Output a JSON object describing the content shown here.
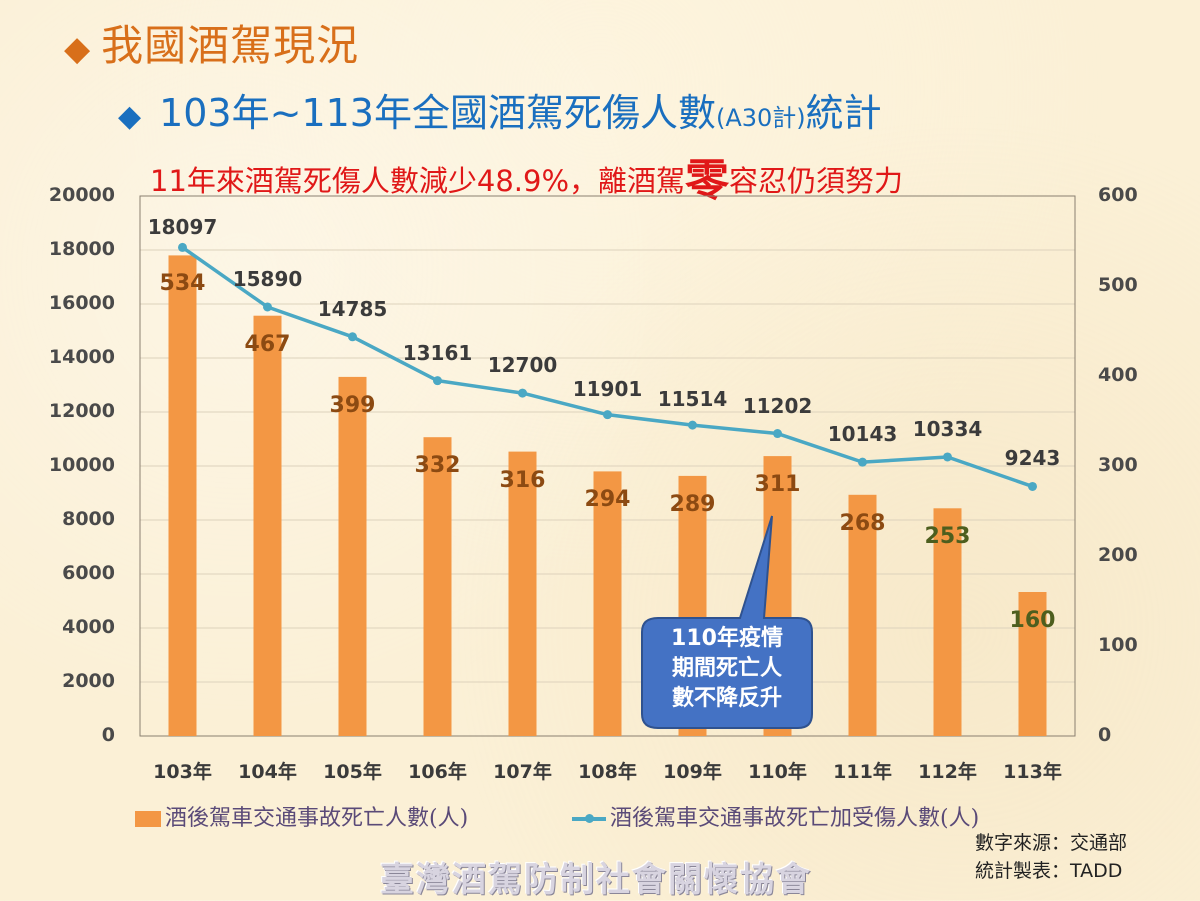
{
  "header": {
    "title": "我國酒駕現況",
    "subtitle_main": "103年~113年全國酒駕死傷人數",
    "subtitle_small": "(A30計)",
    "subtitle_end": "統計",
    "tagline_pre": "11年來酒駕死傷人數減少48.9%，離酒駕",
    "tagline_zero": "零",
    "tagline_post": "容忍仍須努力",
    "bullet_icon": "diamond-icon",
    "title_color": "#d86f1a",
    "subtitle_color": "#1a6fbf",
    "tagline_color": "#e01818"
  },
  "chart_data": {
    "type": "bar+line",
    "title": "103年~113年全國酒駕死傷人數(A30計)統計",
    "subtitle": "11年來酒駕死傷人數減少48.9%，離酒駕零容忍仍須努力",
    "categories": [
      "103年",
      "104年",
      "105年",
      "106年",
      "107年",
      "108年",
      "109年",
      "110年",
      "111年",
      "112年",
      "113年"
    ],
    "series": [
      {
        "name": "酒後駕車交通事故死亡人數(人)",
        "type": "bar",
        "axis": "right",
        "color": "#f39744",
        "values": [
          534,
          467,
          399,
          332,
          316,
          294,
          289,
          311,
          268,
          253,
          160
        ]
      },
      {
        "name": "酒後駕車交通事故死亡加受傷人數(人)",
        "type": "line",
        "axis": "left",
        "color": "#4aa8c4",
        "values": [
          18097,
          15890,
          14785,
          13161,
          12700,
          11901,
          11514,
          11202,
          10143,
          10334,
          9243
        ]
      }
    ],
    "y_left": {
      "min": 0,
      "max": 20000,
      "step": 2000,
      "ticks": [
        "0",
        "2000",
        "4000",
        "6000",
        "8000",
        "10000",
        "12000",
        "14000",
        "16000",
        "18000",
        "20000"
      ]
    },
    "y_right": {
      "min": 0,
      "max": 600,
      "step": 100,
      "ticks": [
        "0",
        "100",
        "200",
        "300",
        "400",
        "500",
        "600"
      ]
    },
    "grid": true,
    "legend_position": "bottom",
    "annotations": [
      {
        "target": "110年",
        "text": "110年疫情期間死亡人數不降反升"
      }
    ]
  },
  "callout": {
    "lines": [
      "110年疫情",
      "期間死亡人",
      "數不降反升"
    ],
    "color": "#4472c4"
  },
  "legend": {
    "bar_label": "酒後駕車交通事故死亡人數(人)",
    "line_label": "酒後駕車交通事故死亡加受傷人數(人)"
  },
  "source": {
    "line1": "數字來源：交通部",
    "line2": "統計製表：TADD"
  },
  "watermark": "臺灣酒駕防制社會關懷協會"
}
